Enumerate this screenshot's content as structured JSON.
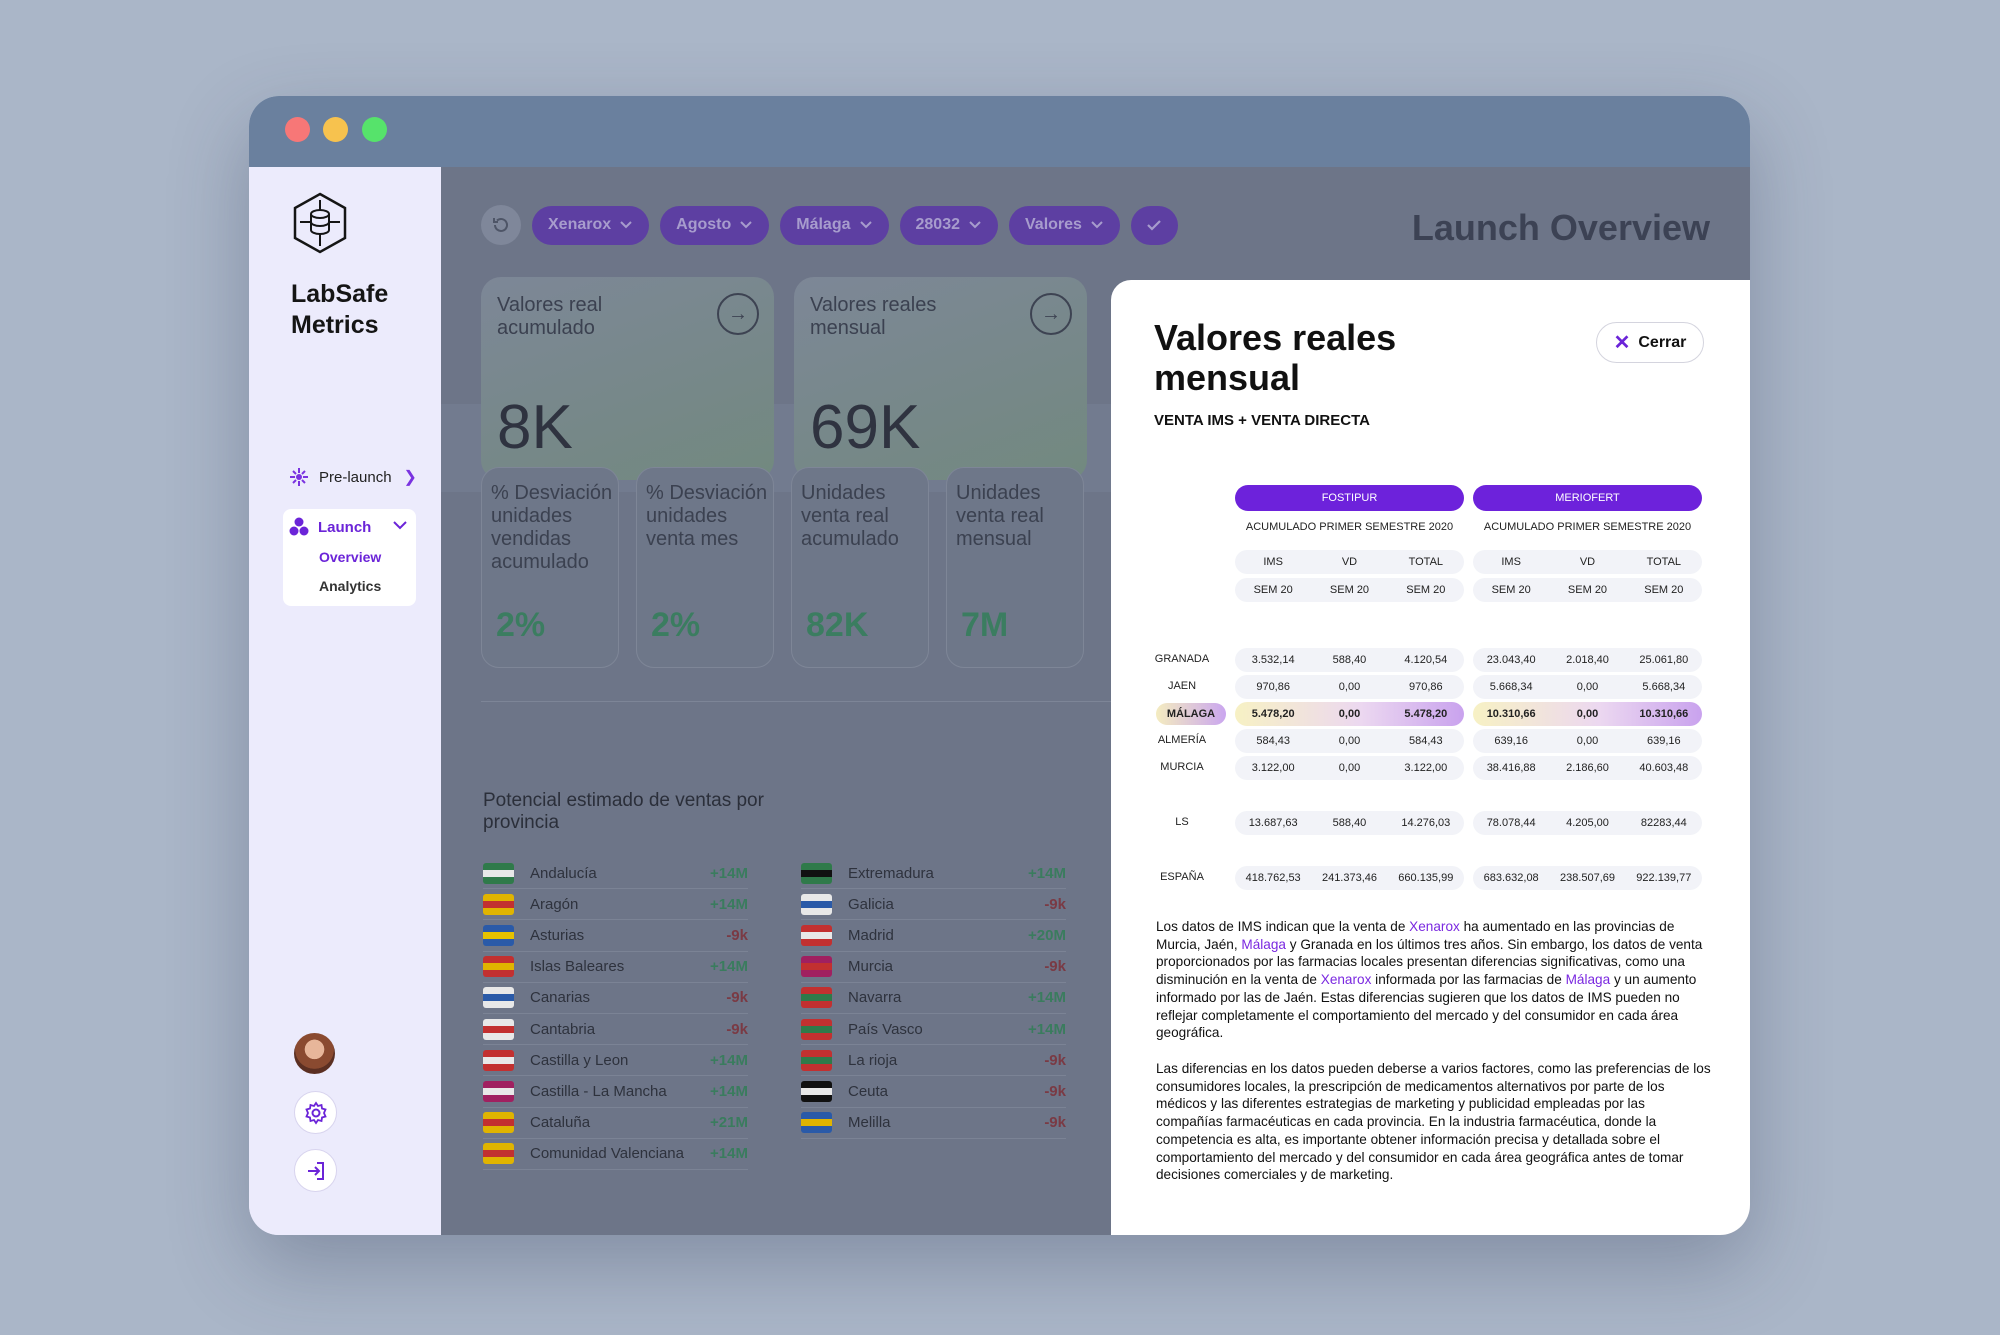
{
  "app": {
    "name_line1": "LabSafe",
    "name_line2": "Metrics"
  },
  "sidebar": {
    "prelaunch": "Pre-launch",
    "launch": "Launch",
    "overview": "Overview",
    "analytics": "Analytics"
  },
  "filters": [
    "Xenarox",
    "Agosto",
    "Málaga",
    "28032",
    "Valores"
  ],
  "page_title": "Launch Overview",
  "kpis_big": [
    {
      "title": "Valores real acumulado",
      "value": "8K"
    },
    {
      "title": "Valores reales mensual",
      "value": "69K"
    }
  ],
  "kpis_small": [
    {
      "title": "% Desviación unidades vendidas acumulado",
      "value": "2%"
    },
    {
      "title": "% Desviación unidades venta mes",
      "value": "2%"
    },
    {
      "title": "Unidades venta real acumulado",
      "value": "82K"
    },
    {
      "title": "Unidades venta real mensual",
      "value": "7M"
    }
  ],
  "potential": {
    "title": "Potencial estimado de ventas por provincia",
    "left": [
      {
        "name": "Andalucía",
        "value": "+14M"
      },
      {
        "name": "Aragón",
        "value": "+14M"
      },
      {
        "name": "Asturias",
        "value": "-9k"
      },
      {
        "name": "Islas Baleares",
        "value": "+14M"
      },
      {
        "name": "Canarias",
        "value": "-9k"
      },
      {
        "name": "Cantabria",
        "value": "-9k"
      },
      {
        "name": "Castilla y Leon",
        "value": "+14M"
      },
      {
        "name": "Castilla - La Mancha",
        "value": "+14M"
      },
      {
        "name": "Cataluña",
        "value": "+21M"
      },
      {
        "name": "Comunidad Valenciana",
        "value": "+14M"
      }
    ],
    "right": [
      {
        "name": "Extremadura",
        "value": "+14M"
      },
      {
        "name": "Galicia",
        "value": "-9k"
      },
      {
        "name": "Madrid",
        "value": "+20M"
      },
      {
        "name": "Murcia",
        "value": "-9k"
      },
      {
        "name": "Navarra",
        "value": "+14M"
      },
      {
        "name": "País Vasco",
        "value": "+14M"
      },
      {
        "name": "La rioja",
        "value": "-9k"
      },
      {
        "name": "Ceuta",
        "value": "-9k"
      },
      {
        "name": "Melilla",
        "value": "-9k"
      }
    ]
  },
  "modal": {
    "title": "Valores reales mensual",
    "subtitle": "VENTA IMS + VENTA DIRECTA",
    "close": "Cerrar",
    "groups": [
      {
        "name": "FOSTIPUR",
        "caption": "ACUMULADO PRIMER SEMESTRE 2020",
        "cols": [
          "IMS",
          "VD",
          "TOTAL"
        ],
        "sem": [
          "SEM 20",
          "SEM 20",
          "SEM 20"
        ]
      },
      {
        "name": "MERIOFERT",
        "caption": "ACUMULADO PRIMER SEMESTRE 2020",
        "cols": [
          "IMS",
          "VD",
          "TOTAL"
        ],
        "sem": [
          "SEM 20",
          "SEM 20",
          "SEM 20"
        ]
      }
    ],
    "rows": [
      {
        "label": "GRANADA",
        "a": [
          "3.532,14",
          "588,40",
          "4.120,54"
        ],
        "b": [
          "23.043,40",
          "2.018,40",
          "25.061,80"
        ]
      },
      {
        "label": "JAEN",
        "a": [
          "970,86",
          "0,00",
          "970,86"
        ],
        "b": [
          "5.668,34",
          "0,00",
          "5.668,34"
        ]
      },
      {
        "label": "MÁLAGA",
        "a": [
          "5.478,20",
          "0,00",
          "5.478,20"
        ],
        "b": [
          "10.310,66",
          "0,00",
          "10.310,66"
        ]
      },
      {
        "label": "ALMERÍA",
        "a": [
          "584,43",
          "0,00",
          "584,43"
        ],
        "b": [
          "639,16",
          "0,00",
          "639,16"
        ]
      },
      {
        "label": "MURCIA",
        "a": [
          "3.122,00",
          "0,00",
          "3.122,00"
        ],
        "b": [
          "38.416,88",
          "2.186,60",
          "40.603,48"
        ]
      },
      {
        "label": "LS",
        "a": [
          "13.687,63",
          "588,40",
          "14.276,03"
        ],
        "b": [
          "78.078,44",
          "4.205,00",
          "82283,44"
        ]
      },
      {
        "label": "ESPAÑA",
        "a": [
          "418.762,53",
          "241.373,46",
          "660.135,99"
        ],
        "b": [
          "683.632,08",
          "238.507,69",
          "922.139,77"
        ]
      }
    ],
    "para1": [
      "Los datos de IMS indican que la venta de ",
      "Xenarox",
      " ha aumentado en las provincias de Murcia, Jaén, ",
      "Málaga",
      " y Granada en los últimos tres años. Sin embargo, los datos de venta proporcionados por las farmacias locales presentan diferencias significativas, como una disminución en la venta de ",
      "Xenarox",
      " informada por las farmacias de ",
      "Málaga",
      " y un aumento informado por las de Jaén. Estas diferencias sugieren que los datos de IMS pueden no reflejar completamente el comportamiento del mercado y del consumidor en cada área geográfica."
    ],
    "para2": "Las diferencias en los datos pueden deberse a varios factores, como las preferencias de los consumidores locales, la prescripción de medicamentos alternativos por parte de los médicos y las diferentes estrategias de marketing y publicidad empleadas por las compañías farmacéuticas en cada provincia. En la industria farmacéutica, donde la competencia es alta, es importante obtener información precisa y detallada sobre el comportamiento del mercado y del consumidor en cada área geográfica antes de tomar decisiones comerciales y de marketing."
  },
  "icons": {
    "logo": "hexagon-database-icon",
    "prelaunch": "rocket-icon",
    "launch": "cluster-icon",
    "gear": "gear-icon",
    "logout": "logout-icon",
    "refresh": "refresh-icon",
    "check": "check-icon",
    "close": "close-icon",
    "arrow": "arrow-right-icon"
  }
}
